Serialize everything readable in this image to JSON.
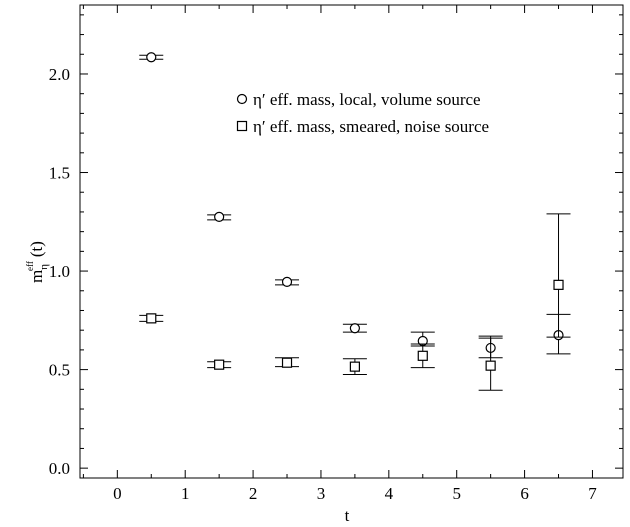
{
  "chart_data": {
    "type": "scatter",
    "xlabel": "t",
    "ylabel": {
      "base": "m",
      "sub": "η",
      "sup": "eff",
      "suffix": "(t)"
    },
    "xlim": [
      -0.55,
      7.45
    ],
    "ylim": [
      -0.05,
      2.35
    ],
    "xticks": [
      0,
      1,
      2,
      3,
      4,
      5,
      6,
      7
    ],
    "xtick_labels": [
      "0",
      "1",
      "2",
      "3",
      "4",
      "5",
      "6",
      "7"
    ],
    "yticks": [
      0.0,
      0.5,
      1.0,
      1.5,
      2.0
    ],
    "ytick_labels": [
      "0.0",
      "0.5",
      "1.0",
      "1.5",
      "2.0"
    ],
    "grid": false,
    "legend_position": "top-right",
    "series": [
      {
        "name": "η′ eff. mass, local, volume source",
        "marker": "circle",
        "x": [
          0.5,
          1.5,
          2.5,
          3.5,
          4.5,
          5.5,
          6.5
        ],
        "y": [
          2.085,
          1.275,
          0.945,
          0.71,
          0.645,
          0.61,
          0.675
        ],
        "err_lo": [
          2.075,
          1.26,
          0.93,
          0.69,
          0.62,
          0.56,
          0.58
        ],
        "err_hi": [
          2.095,
          1.285,
          0.955,
          0.73,
          0.69,
          0.67,
          0.78
        ]
      },
      {
        "name": "η′ eff. mass, smeared, noise source",
        "marker": "square",
        "x": [
          0.5,
          1.5,
          2.5,
          3.5,
          4.5,
          5.5,
          6.5
        ],
        "y": [
          0.76,
          0.525,
          0.535,
          0.515,
          0.57,
          0.52,
          0.93
        ],
        "err_lo": [
          0.745,
          0.51,
          0.515,
          0.475,
          0.51,
          0.395,
          0.665
        ],
        "err_hi": [
          0.775,
          0.54,
          0.56,
          0.555,
          0.63,
          0.66,
          1.29
        ]
      }
    ]
  }
}
